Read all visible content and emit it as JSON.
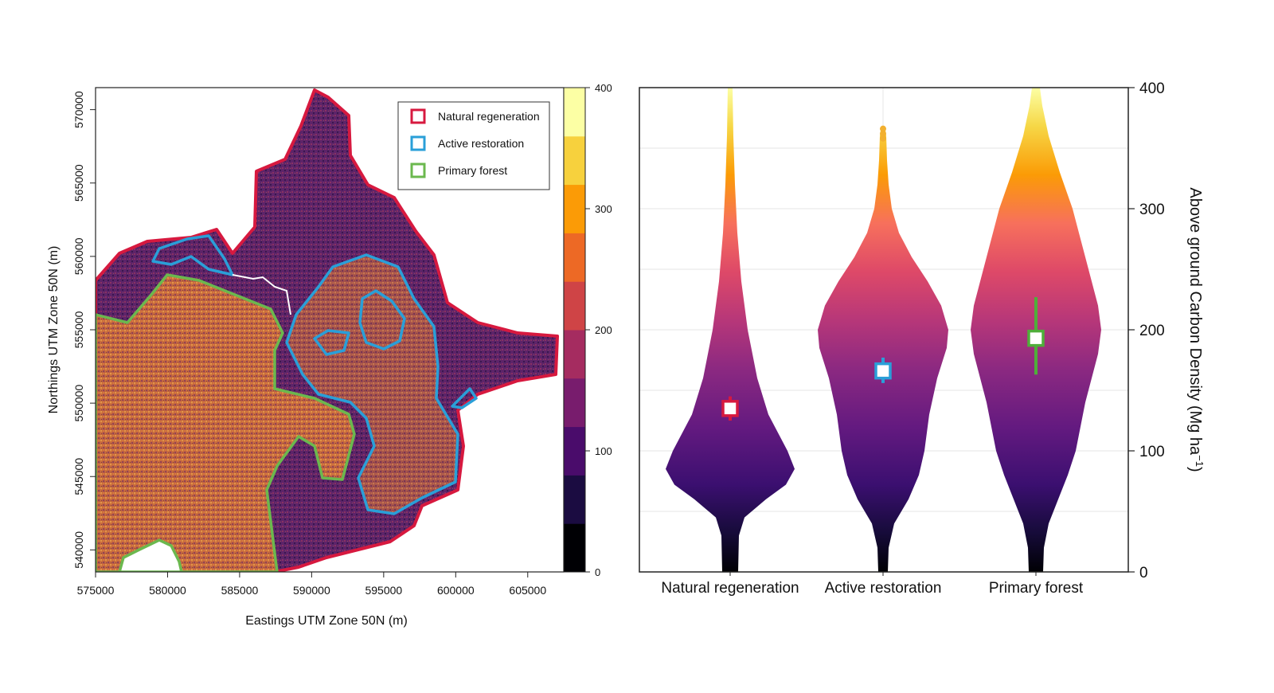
{
  "chart_data": [
    {
      "type": "heatmap",
      "xlabel": "Eastings UTM Zone 50N (m)",
      "ylabel": "Northings UTM Zone 50N (m)",
      "xlim": [
        575000,
        607500
      ],
      "ylim": [
        538500,
        571500
      ],
      "x_ticks": [
        "575000",
        "580000",
        "585000",
        "590000",
        "595000",
        "600000",
        "605000"
      ],
      "y_ticks": [
        "540000",
        "545000",
        "550000",
        "555000",
        "560000",
        "565000",
        "570000"
      ],
      "colorbar": {
        "range": [
          0,
          400
        ],
        "ticks": [
          "0",
          "100",
          "200",
          "300",
          "400"
        ],
        "colors": [
          "#000004",
          "#1b0c41",
          "#4a0c6b",
          "#781c6d",
          "#a52c60",
          "#cf4446",
          "#ed6925",
          "#fb9b06",
          "#f7d13d",
          "#fcffa4"
        ]
      },
      "legend": {
        "position": "top-right",
        "entries": [
          {
            "label": "Natural regeneration",
            "color": "#d7193f"
          },
          {
            "label": "Active restoration",
            "color": "#2a9fd8"
          },
          {
            "label": "Primary forest",
            "color": "#6bb84e"
          }
        ]
      }
    },
    {
      "type": "violin",
      "categories": [
        "Natural regeneration",
        "Active restoration",
        "Primary forest"
      ],
      "ylabel": "Above ground Carbon Density (Mg ha",
      "ylabel_sup": "−1",
      "ylabel_close": ")",
      "ylim": [
        0,
        400
      ],
      "y_ticks": [
        "0",
        "100",
        "200",
        "300",
        "400"
      ],
      "grid": true,
      "series": [
        {
          "category": "Natural regeneration",
          "median": 135,
          "q1": 125,
          "q3": 145,
          "max": 400,
          "mode": 85,
          "color": "#d7193f"
        },
        {
          "category": "Active restoration",
          "median": 166,
          "q1": 156,
          "q3": 177,
          "max": 365,
          "mode": 200,
          "color": "#2a9fd8"
        },
        {
          "category": "Primary forest",
          "median": 193,
          "q1": 163,
          "q3": 227,
          "max": 400,
          "mode": 205,
          "color": "#4fae3a"
        }
      ]
    }
  ]
}
